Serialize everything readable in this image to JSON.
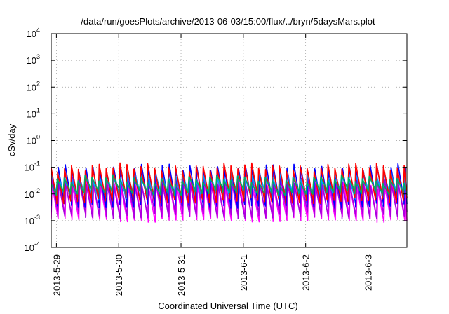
{
  "chart_data": {
    "type": "line",
    "title": "/data/run/goesPlots/archive/2013-06-03/15:00/flux/../bryn/5daysMars.plot",
    "xlabel": "Coordinated Universal Time (UTC)",
    "ylabel": "cSv/day",
    "yscale": "log",
    "ylim_exponents": [
      -4,
      4
    ],
    "y_ticks": [
      {
        "base": "10",
        "exp": "-4"
      },
      {
        "base": "10",
        "exp": "-3"
      },
      {
        "base": "10",
        "exp": "-2"
      },
      {
        "base": "10",
        "exp": "-1"
      },
      {
        "base": "10",
        "exp": "0"
      },
      {
        "base": "10",
        "exp": "1"
      },
      {
        "base": "10",
        "exp": "2"
      },
      {
        "base": "10",
        "exp": "3"
      },
      {
        "base": "10",
        "exp": "4"
      }
    ],
    "xlim": [
      "2013-05-28T22:00",
      "2013-06-03T15:00"
    ],
    "x_ticks": [
      "2013-5-29",
      "2013-5-30",
      "2013-5-31",
      "2013-6-1",
      "2013-6-2",
      "2013-6-3"
    ],
    "grid": true,
    "cycle_hours": 2.67,
    "series": [
      {
        "color": "#ff00ff",
        "peak": 0.022,
        "trough": 0.0012
      },
      {
        "color": "#aa00dd",
        "peak": 0.028,
        "trough": 0.0016
      },
      {
        "color": "#0000ff",
        "peak": 0.09,
        "trough": 0.004
      },
      {
        "color": "#0099ff",
        "peak": 0.05,
        "trough": 0.008
      },
      {
        "color": "#ff0000",
        "peak": 0.1,
        "trough": 0.006
      },
      {
        "color": "#00aa66",
        "peak": 0.035,
        "trough": 0.012
      }
    ]
  }
}
